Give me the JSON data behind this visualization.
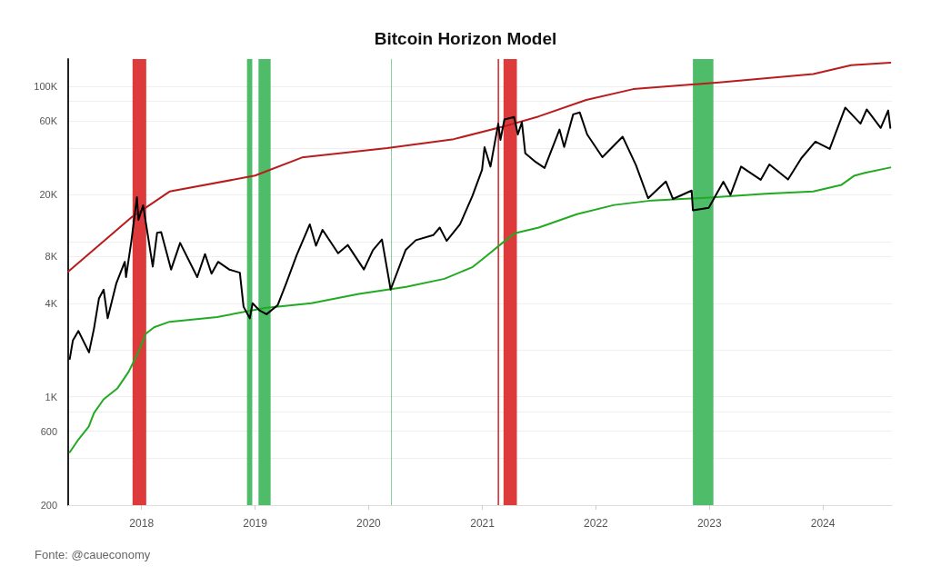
{
  "chart_data": {
    "type": "line",
    "title": "Bitcoin Horizon Model",
    "annotations": [
      "Fonte: @caueconomy"
    ],
    "log": true,
    "grid": "y",
    "marker": "none",
    "line_style": "solid",
    "xlim": [
      "2017-05-10",
      "2024-08-10"
    ],
    "xticks": [
      {
        "value": "2018",
        "label": "2018"
      },
      {
        "value": "2019",
        "label": "2019"
      },
      {
        "value": "2020",
        "label": "2020"
      },
      {
        "value": "2021",
        "label": "2021"
      },
      {
        "value": "2022",
        "label": "2022"
      },
      {
        "value": "2023",
        "label": "2023"
      },
      {
        "value": "2024",
        "label": "2024"
      }
    ],
    "ylim": [
      200,
      150000
    ],
    "yticks": [
      200,
      {
        "value": 400,
        "label": null
      },
      600,
      {
        "value": 800,
        "label": null
      },
      {
        "value": 1000,
        "label": "1K"
      },
      {
        "value": 2000,
        "label": null
      },
      {
        "value": 4000,
        "label": "4K"
      },
      {
        "value": 8000,
        "label": "8K"
      },
      {
        "value": 10000,
        "label": null
      },
      {
        "value": 20000,
        "label": "20K"
      },
      {
        "value": 40000,
        "label": null
      },
      {
        "value": 60000,
        "label": "60K"
      },
      {
        "value": 80000,
        "label": null
      },
      {
        "value": 100000,
        "label": "100K"
      }
    ],
    "bands": [
      {
        "axis": "x",
        "from": "2017-12-03",
        "to": "2018-01-16",
        "color": "#d92626"
      },
      {
        "axis": "x",
        "from": "2018-12-06",
        "to": "2018-12-23",
        "color": "#3cb55a"
      },
      {
        "axis": "x",
        "from": "2019-01-12",
        "to": "2019-02-20",
        "color": "#3cb55a"
      },
      {
        "axis": "x",
        "from": "2020-03-13",
        "to": "2020-03-15",
        "color": "#3cb55a"
      },
      {
        "axis": "x",
        "from": "2021-02-19",
        "to": "2021-02-24",
        "color": "#d92626"
      },
      {
        "axis": "x",
        "from": "2021-03-10",
        "to": "2021-04-22",
        "color": "#d92626"
      },
      {
        "axis": "x",
        "from": "2022-11-09",
        "to": "2023-01-14",
        "color": "#3cb55a"
      }
    ],
    "series": [
      {
        "color": "#b81c1c",
        "x": [
          "2017-05-10",
          "2017-12-01",
          "2018-04-01",
          "2019-01-01",
          "2019-06-01",
          "2020-03-01",
          "2020-10-01",
          "2021-03-01",
          "2021-07-01",
          "2021-12-01",
          "2022-05-01",
          "2023-02-01",
          "2023-12-01",
          "2024-04-01",
          "2024-08-05"
        ],
        "values": [
          6400,
          14400,
          21000,
          26600,
          34800,
          40000,
          45700,
          54500,
          64000,
          81800,
          96000,
          106000,
          120000,
          137000,
          142000
        ]
      },
      {
        "color": "#22aa22",
        "x": [
          "2017-05-15",
          "2017-06-10",
          "2017-07-15",
          "2017-08-01",
          "2017-09-01",
          "2017-10-15",
          "2017-11-20",
          "2017-12-20",
          "2018-01-15",
          "2018-02-10",
          "2018-04-01",
          "2018-09-01",
          "2019-02-01",
          "2019-07-01",
          "2019-12-01",
          "2020-05-01",
          "2020-09-01",
          "2020-12-01",
          "2021-01-15",
          "2021-03-01",
          "2021-04-15",
          "2021-07-01",
          "2021-11-01",
          "2022-03-01",
          "2022-07-01",
          "2023-01-01",
          "2023-07-01",
          "2023-12-01",
          "2024-03-01",
          "2024-04-10",
          "2024-05-15",
          "2024-08-05"
        ],
        "values": [
          439,
          523,
          641,
          785,
          962,
          1130,
          1445,
          1900,
          2550,
          2800,
          3040,
          3260,
          3730,
          4000,
          4600,
          5100,
          5750,
          6860,
          8100,
          9600,
          11300,
          12300,
          15000,
          17200,
          18400,
          19200,
          20300,
          21000,
          23200,
          26500,
          27700,
          30000
        ]
      },
      {
        "color": "#000000",
        "x": [
          "2017-05-15",
          "2017-05-25",
          "2017-06-12",
          "2017-07-16",
          "2017-08-01",
          "2017-08-17",
          "2017-09-01",
          "2017-09-14",
          "2017-10-12",
          "2017-11-08",
          "2017-11-12",
          "2017-11-29",
          "2017-12-17",
          "2017-12-22",
          "2018-01-06",
          "2018-02-06",
          "2018-02-20",
          "2018-03-05",
          "2018-04-06",
          "2018-05-05",
          "2018-06-29",
          "2018-07-24",
          "2018-08-14",
          "2018-09-04",
          "2018-10-10",
          "2018-11-13",
          "2018-11-25",
          "2018-12-15",
          "2018-12-24",
          "2019-01-15",
          "2019-02-07",
          "2019-03-15",
          "2019-04-10",
          "2019-05-15",
          "2019-06-26",
          "2019-07-16",
          "2019-08-06",
          "2019-09-25",
          "2019-10-26",
          "2019-12-17",
          "2020-01-15",
          "2020-02-13",
          "2020-03-12",
          "2020-04-29",
          "2020-06-01",
          "2020-07-27",
          "2020-08-17",
          "2020-09-08",
          "2020-10-21",
          "2020-11-30",
          "2020-12-31",
          "2021-01-08",
          "2021-01-27",
          "2021-02-21",
          "2021-02-28",
          "2021-03-13",
          "2021-04-13",
          "2021-04-25",
          "2021-05-08",
          "2021-05-19",
          "2021-06-22",
          "2021-07-20",
          "2021-09-06",
          "2021-09-21",
          "2021-10-20",
          "2021-11-10",
          "2021-12-04",
          "2022-01-22",
          "2022-03-28",
          "2022-05-10",
          "2022-06-18",
          "2022-08-14",
          "2022-09-06",
          "2022-11-05",
          "2022-11-09",
          "2022-12-30",
          "2023-02-15",
          "2023-03-10",
          "2023-04-13",
          "2023-06-15",
          "2023-07-13",
          "2023-09-11",
          "2023-10-24",
          "2023-12-08",
          "2024-01-23",
          "2024-03-13",
          "2024-05-01",
          "2024-05-21",
          "2024-07-05",
          "2024-07-29",
          "2024-08-05"
        ],
        "values": [
          1750,
          2300,
          2650,
          1930,
          2750,
          4300,
          4900,
          3200,
          5400,
          7400,
          5900,
          10000,
          19300,
          13800,
          17100,
          6900,
          11400,
          11500,
          6600,
          9800,
          5900,
          8300,
          6200,
          7400,
          6600,
          6300,
          3800,
          3200,
          4000,
          3600,
          3400,
          3900,
          5300,
          8200,
          12900,
          9400,
          11900,
          8400,
          9500,
          6600,
          8800,
          10300,
          4900,
          8800,
          10200,
          11000,
          12300,
          10100,
          12900,
          19700,
          29000,
          40600,
          30400,
          57500,
          45200,
          61200,
          63500,
          49000,
          58800,
          37000,
          32500,
          29800,
          52700,
          40700,
          66000,
          68000,
          49000,
          35000,
          47400,
          31000,
          19000,
          24400,
          18800,
          21300,
          15900,
          16500,
          24300,
          20000,
          30400,
          25000,
          31400,
          25100,
          34500,
          44000,
          39500,
          73000,
          57500,
          71000,
          54000,
          69900,
          54000
        ]
      }
    ]
  }
}
